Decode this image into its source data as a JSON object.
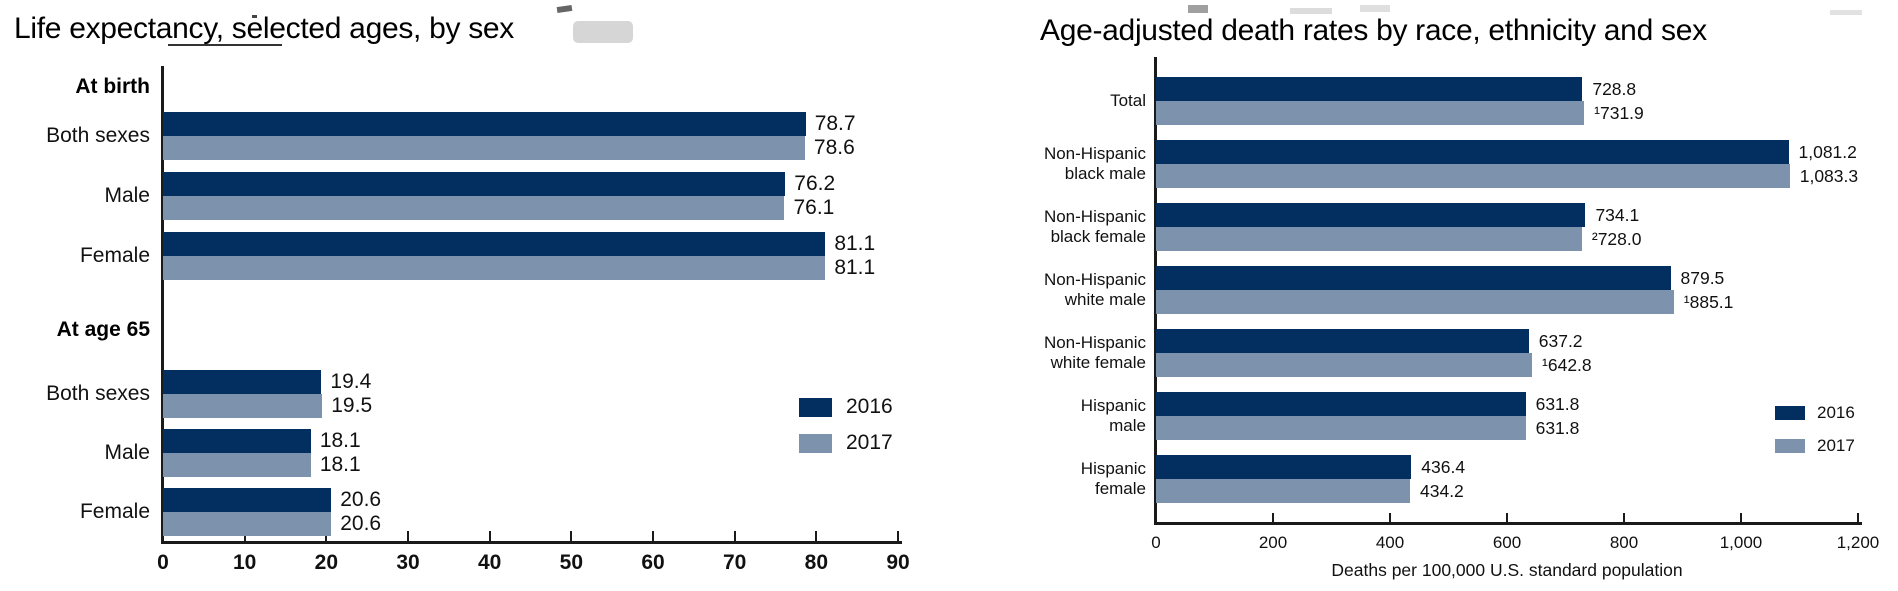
{
  "page": {
    "background": "#ffffff"
  },
  "colors": {
    "series_2016": "#022f5f",
    "series_2017": "#7d92ac",
    "axis": "#1a1a1a",
    "text": "#111111"
  },
  "chart_data": [
    {
      "type": "bar",
      "orientation": "horizontal",
      "title": "Life expectancy, selected ages, by sex",
      "xlabel": "",
      "xlim": [
        0,
        90
      ],
      "xticks": [
        "0",
        "10",
        "20",
        "30",
        "40",
        "50",
        "60",
        "70",
        "80",
        "90"
      ],
      "grid": false,
      "legend_position": "middle-right",
      "series_names": [
        "2016",
        "2017"
      ],
      "series_colors": [
        "#022f5f",
        "#7d92ac"
      ],
      "groups": [
        {
          "heading": "At birth",
          "rows": [
            {
              "label": "Both sexes",
              "values": [
                78.7,
                78.6
              ],
              "value_labels": [
                "78.7",
                "78.6"
              ]
            },
            {
              "label": "Male",
              "values": [
                76.2,
                76.1
              ],
              "value_labels": [
                "76.2",
                "76.1"
              ]
            },
            {
              "label": "Female",
              "values": [
                81.1,
                81.1
              ],
              "value_labels": [
                "81.1",
                "81.1"
              ]
            }
          ]
        },
        {
          "heading": "At age 65",
          "rows": [
            {
              "label": "Both sexes",
              "values": [
                19.4,
                19.5
              ],
              "value_labels": [
                "19.4",
                "19.5"
              ]
            },
            {
              "label": "Male",
              "values": [
                18.1,
                18.1
              ],
              "value_labels": [
                "18.1",
                "18.1"
              ]
            },
            {
              "label": "Female",
              "values": [
                20.6,
                20.6
              ],
              "value_labels": [
                "20.6",
                "20.6"
              ]
            }
          ]
        }
      ]
    },
    {
      "type": "bar",
      "orientation": "horizontal",
      "title": "Age-adjusted death rates by race, ethnicity and sex",
      "xlabel": "Deaths per 100,000 U.S. standard population",
      "xlim": [
        0,
        1200
      ],
      "xticks": [
        "0",
        "200",
        "400",
        "600",
        "800",
        "1,000",
        "1,200"
      ],
      "grid": false,
      "legend_position": "middle-right",
      "series_names": [
        "2016",
        "2017"
      ],
      "series_colors": [
        "#022f5f",
        "#7d92ac"
      ],
      "categories": [
        "Total",
        "Non-Hispanic black male",
        "Non-Hispanic black female",
        "Non-Hispanic white male",
        "Non-Hispanic white female",
        "Hispanic male",
        "Hispanic female"
      ],
      "category_lines": [
        [
          "Total"
        ],
        [
          "Non-Hispanic",
          "black male"
        ],
        [
          "Non-Hispanic",
          "black female"
        ],
        [
          "Non-Hispanic",
          "white male"
        ],
        [
          "Non-Hispanic",
          "white female"
        ],
        [
          "Hispanic",
          "male"
        ],
        [
          "Hispanic",
          "female"
        ]
      ],
      "series": [
        {
          "name": "2016",
          "values": [
            728.8,
            1081.2,
            734.1,
            879.5,
            637.2,
            631.8,
            436.4
          ],
          "value_labels": [
            "728.8",
            "1,081.2",
            "734.1",
            "879.5",
            "637.2",
            "631.8",
            "436.4"
          ]
        },
        {
          "name": "2017",
          "values": [
            731.9,
            1083.3,
            728.0,
            885.1,
            642.8,
            631.8,
            434.2
          ],
          "value_labels": [
            "¹731.9",
            "1,083.3",
            "²728.0",
            "¹885.1",
            "¹642.8",
            "631.8",
            "434.2"
          ]
        }
      ]
    }
  ]
}
